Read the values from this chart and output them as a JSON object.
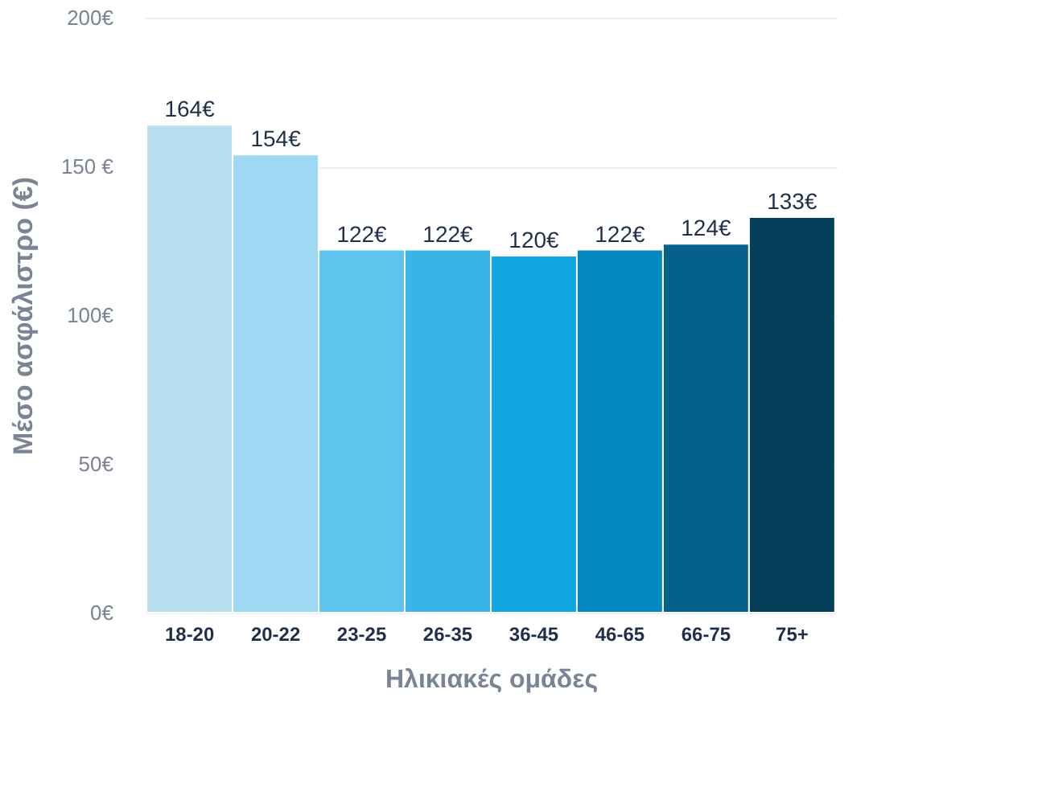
{
  "chart_data": {
    "type": "bar",
    "xlabel": "Ηλικιακές ομάδες",
    "ylabel": "Μέσο ασφάλιστρο (€)",
    "categories": [
      "18-20",
      "20-22",
      "23-25",
      "26-35",
      "36-45",
      "46-65",
      "66-75",
      "75+"
    ],
    "values": [
      164,
      154,
      122,
      122,
      120,
      122,
      124,
      133
    ],
    "colors": [
      "#b8dff0",
      "#9ed8f2",
      "#5ec4ec",
      "#38b5e6",
      "#0ea5e0",
      "#0588c0",
      "#05608a",
      "#053f5a"
    ],
    "value_labels": [
      "164€",
      "154€",
      "122€",
      "122€",
      "120€",
      "122€",
      "124€",
      "133€"
    ],
    "ylim": [
      0,
      200
    ],
    "yticks": [
      {
        "value": 0,
        "label": "0€"
      },
      {
        "value": 50,
        "label": "50€"
      },
      {
        "value": 100,
        "label": "100€"
      },
      {
        "value": 150,
        "label": "150 €"
      },
      {
        "value": 200,
        "label": "200€"
      }
    ],
    "grid": "y"
  }
}
